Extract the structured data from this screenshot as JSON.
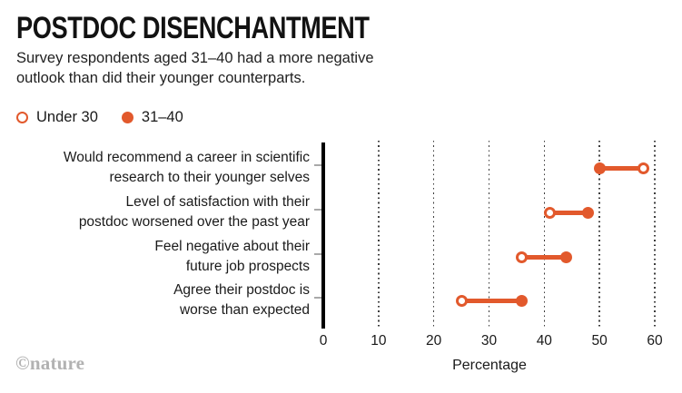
{
  "header": {
    "title": "POSTDOC DISENCHANTMENT",
    "subtitle_lines": [
      "Survey respondents aged 31–40 had a more negative",
      "outlook than did their younger counterparts."
    ]
  },
  "legend": {
    "items": [
      {
        "label": "Under 30",
        "marker": "open"
      },
      {
        "label": "31–40",
        "marker": "filled"
      }
    ]
  },
  "footer": {
    "logo_text": "©nature"
  },
  "colors": {
    "accent": "#E2592C",
    "axis": "#000000",
    "gridline": "#3c3c3c",
    "category_tick": "#a9a9a9",
    "logo_gray": "#b2b2b2"
  },
  "chart_data": {
    "type": "dumbbell",
    "title": "POSTDOC DISENCHANTMENT",
    "categories": [
      "Would recommend a career in scientific research to their younger selves",
      "Level of satisfaction with their postdoc worsened over the past year",
      "Feel negative about their future job prospects",
      "Agree their postdoc is worse than expected"
    ],
    "category_lines": [
      [
        "Would recommend a career in scientific",
        "research to their younger selves"
      ],
      [
        "Level of satisfaction with their",
        "postdoc worsened over the past year"
      ],
      [
        "Feel negative about their",
        "future job prospects"
      ],
      [
        "Agree their postdoc is",
        "worse than expected"
      ]
    ],
    "series": [
      {
        "name": "Under 30",
        "marker": "open",
        "values": [
          58,
          41,
          36,
          25
        ]
      },
      {
        "name": "31–40",
        "marker": "filled",
        "values": [
          50,
          48,
          44,
          36
        ]
      }
    ],
    "xlabel": "Percentage",
    "xlim": [
      0,
      60
    ],
    "xticks": [
      0,
      10,
      20,
      30,
      40,
      50,
      60
    ],
    "grid": "dotted-vertical",
    "legend_position": "top-left"
  }
}
